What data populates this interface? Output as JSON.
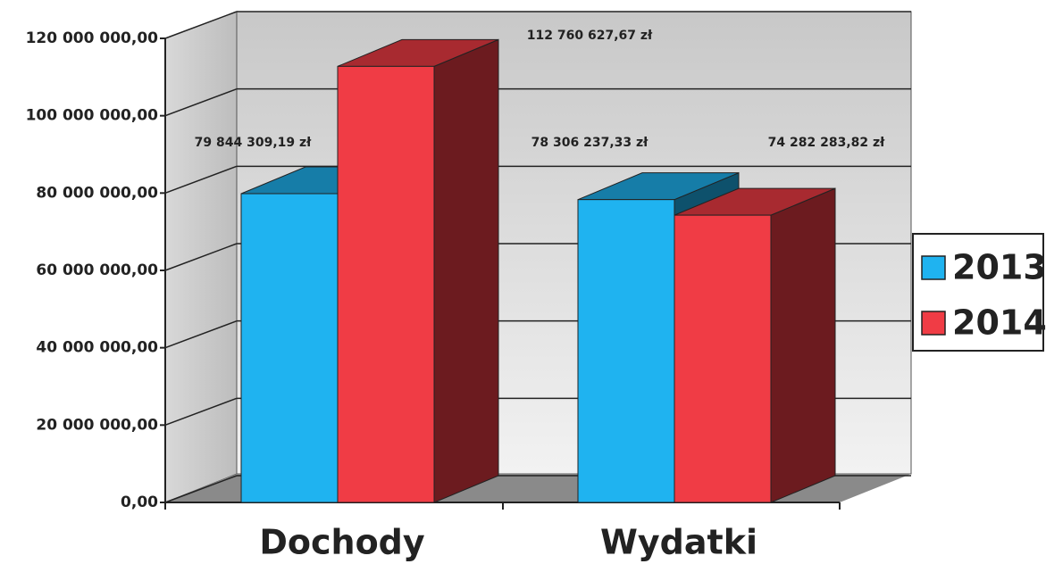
{
  "chart_data": {
    "type": "bar3d",
    "categories": [
      "Dochody",
      "Wydatki"
    ],
    "series": [
      {
        "name": "2013",
        "color": "#1fb3f0",
        "values": [
          79844309.19,
          78306237.33
        ],
        "value_labels": [
          "79 844 309,19 zł",
          "78 306 237,33 zł"
        ]
      },
      {
        "name": "2014",
        "color": "#f03c45",
        "values": [
          112760627.67,
          74282283.82
        ],
        "value_labels": [
          "112 760 627,67 zł",
          "74 282 283,82 zł"
        ]
      }
    ],
    "ylim": [
      0,
      120000000
    ],
    "yticks": [
      {
        "value": 0,
        "label": "0,00"
      },
      {
        "value": 20000000,
        "label": "20 000 000,00"
      },
      {
        "value": 40000000,
        "label": "40 000 000,00"
      },
      {
        "value": 60000000,
        "label": "60 000 000,00"
      },
      {
        "value": 80000000,
        "label": "80 000 000,00"
      },
      {
        "value": 100000000,
        "label": "100 000 000,00"
      },
      {
        "value": 120000000,
        "label": "120 000 000,00"
      }
    ],
    "grid": true,
    "legend": "right"
  }
}
